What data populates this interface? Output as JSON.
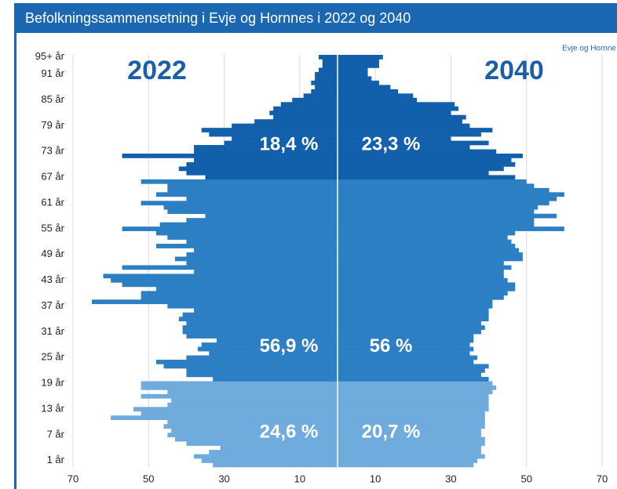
{
  "chart_data": {
    "type": "pyramid",
    "title": "Befolkningssammensetning i Evje og Hornnes i 2022 og 2040",
    "source": "Evje og Hornne",
    "categories": [
      null,
      "1 år",
      null,
      null,
      null,
      null,
      null,
      "7 år",
      null,
      null,
      null,
      null,
      null,
      "13 år",
      null,
      null,
      null,
      null,
      null,
      "19 år",
      null,
      null,
      null,
      null,
      null,
      "25 år",
      null,
      null,
      null,
      null,
      null,
      "31 år",
      null,
      null,
      null,
      null,
      null,
      "37 år",
      null,
      null,
      null,
      null,
      null,
      "43 år",
      null,
      null,
      null,
      null,
      null,
      "49 år",
      null,
      null,
      null,
      null,
      null,
      "55 år",
      null,
      null,
      null,
      null,
      null,
      "61 år",
      null,
      null,
      null,
      null,
      null,
      "67 år",
      null,
      null,
      null,
      null,
      null,
      "73 år",
      null,
      null,
      null,
      null,
      null,
      "79 år",
      null,
      null,
      null,
      null,
      null,
      "85 år",
      null,
      null,
      null,
      null,
      null,
      "91 år",
      null,
      null,
      null,
      "95+ år"
    ],
    "series": [
      {
        "name": "2022",
        "side": "left",
        "values": [
          33,
          36,
          38,
          34,
          31,
          40,
          43,
          45,
          44,
          46,
          45,
          60,
          52,
          54,
          45,
          44,
          52,
          45,
          52,
          52,
          33,
          40,
          40,
          46,
          48,
          40,
          34,
          37,
          36,
          32,
          40,
          41,
          41,
          40,
          42,
          41,
          38,
          45,
          65,
          52,
          52,
          48,
          57,
          60,
          62,
          38,
          57,
          40,
          43,
          40,
          38,
          48,
          40,
          45,
          48,
          57,
          47,
          40,
          35,
          45,
          46,
          52,
          40,
          48,
          45,
          45,
          52,
          35,
          40,
          42,
          40,
          38,
          57,
          38,
          38,
          30,
          28,
          34,
          36,
          28,
          22,
          17,
          18,
          17,
          15,
          12,
          9,
          7,
          6,
          7,
          6,
          6,
          5,
          4,
          4,
          5
        ]
      },
      {
        "name": "2040",
        "side": "right",
        "values": [
          36,
          37,
          39,
          38,
          38,
          39,
          39,
          38,
          38,
          39,
          39,
          39,
          39,
          40,
          40,
          40,
          40,
          41,
          42,
          41,
          40,
          38,
          39,
          40,
          36,
          37,
          35,
          36,
          35,
          36,
          36,
          38,
          39,
          38,
          40,
          40,
          40,
          41,
          41,
          44,
          45,
          47,
          47,
          45,
          44,
          44,
          46,
          44,
          49,
          49,
          48,
          47,
          46,
          45,
          47,
          60,
          52,
          52,
          58,
          52,
          53,
          56,
          58,
          60,
          56,
          52,
          50,
          47,
          40,
          44,
          47,
          46,
          49,
          42,
          35,
          40,
          30,
          38,
          41,
          35,
          33,
          34,
          30,
          32,
          31,
          21,
          20,
          16,
          14,
          11,
          9,
          8,
          8,
          11,
          11,
          12
        ]
      }
    ],
    "groups": [
      {
        "from": 0,
        "to": 19,
        "color": "#6fabdd",
        "values": [
          24.6,
          20.7
        ],
        "value_labels": [
          "24,6 %",
          "20,7 %"
        ]
      },
      {
        "from": 20,
        "to": 66,
        "color": "#2c7fc3",
        "values": [
          56.9,
          56
        ],
        "value_labels": [
          "56,9 %",
          "56 %"
        ]
      },
      {
        "from": 67,
        "to": 95,
        "color": "#125fab",
        "values": [
          18.4,
          23.3
        ],
        "value_labels": [
          "18,4 %",
          "23,3 %"
        ]
      }
    ],
    "xlim": [
      -70,
      70
    ],
    "xticks": [
      {
        "value": -70,
        "label": "70"
      },
      {
        "value": -50,
        "label": "50"
      },
      {
        "value": -30,
        "label": "30"
      },
      {
        "value": -10,
        "label": "10"
      },
      10,
      30,
      50,
      70
    ],
    "grid": true
  }
}
